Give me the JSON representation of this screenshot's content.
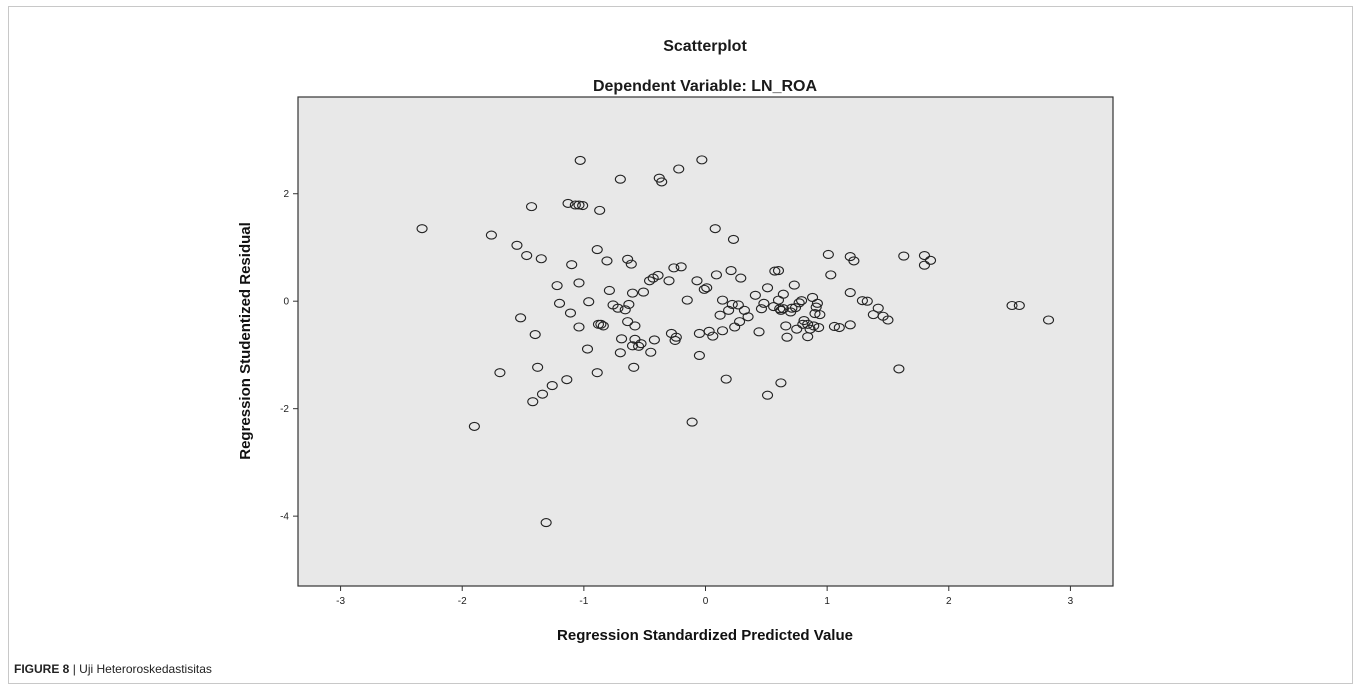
{
  "figure": {
    "label": "FIGURE 8",
    "separator": "|",
    "caption_text": "Uji Heteroroskedastisitas"
  },
  "chart_data": {
    "type": "scatter",
    "title": "Scatterplot",
    "subtitle": "Dependent Variable: LN_ROA",
    "xlabel": "Regression Standardized Predicted Value",
    "ylabel": "Regression Studentized Residual",
    "xlim": [
      -3.35,
      3.35
    ],
    "ylim": [
      -5.3,
      3.8
    ],
    "xticks": [
      -3,
      -2,
      -1,
      0,
      1,
      2,
      3
    ],
    "xtick_labels": [
      "-3",
      "-2",
      "-1",
      "0",
      "1",
      "2",
      "3"
    ],
    "yticks": [
      -4,
      -2,
      0,
      2
    ],
    "ytick_labels": [
      "-4",
      "-2",
      "0",
      "2"
    ],
    "grid": false,
    "marker": "open-circle",
    "colors": {
      "plot_background": "#e8e8e8",
      "marker_stroke": "#222222",
      "axis": "#333333"
    },
    "series": [
      {
        "points": [
          [
            -2.33,
            1.35
          ],
          [
            -1.9,
            -2.33
          ],
          [
            -1.76,
            1.23
          ],
          [
            -1.69,
            -1.33
          ],
          [
            -1.55,
            1.04
          ],
          [
            -1.52,
            -0.31
          ],
          [
            -1.47,
            0.85
          ],
          [
            -1.43,
            1.76
          ],
          [
            -1.42,
            -1.87
          ],
          [
            -1.4,
            -0.62
          ],
          [
            -1.38,
            -1.23
          ],
          [
            -1.35,
            0.79
          ],
          [
            -1.34,
            -1.73
          ],
          [
            -1.31,
            -4.12
          ],
          [
            -1.26,
            -1.57
          ],
          [
            -1.22,
            0.29
          ],
          [
            -1.2,
            -0.04
          ],
          [
            -1.14,
            -1.46
          ],
          [
            -1.13,
            1.82
          ],
          [
            -1.11,
            -0.22
          ],
          [
            -1.1,
            0.68
          ],
          [
            -1.07,
            1.79
          ],
          [
            -1.04,
            1.79
          ],
          [
            -1.04,
            0.34
          ],
          [
            -1.04,
            -0.48
          ],
          [
            -1.03,
            2.62
          ],
          [
            -1.01,
            1.78
          ],
          [
            -0.97,
            -0.89
          ],
          [
            -0.96,
            -0.01
          ],
          [
            -0.89,
            0.96
          ],
          [
            -0.89,
            -1.33
          ],
          [
            -0.88,
            -0.43
          ],
          [
            -0.87,
            1.69
          ],
          [
            -0.86,
            -0.43
          ],
          [
            -0.84,
            -0.46
          ],
          [
            -0.81,
            0.75
          ],
          [
            -0.79,
            0.2
          ],
          [
            -0.76,
            -0.07
          ],
          [
            -0.72,
            -0.13
          ],
          [
            -0.7,
            -0.96
          ],
          [
            -0.7,
            2.27
          ],
          [
            -0.69,
            -0.7
          ],
          [
            -0.66,
            -0.16
          ],
          [
            -0.64,
            -0.38
          ],
          [
            -0.64,
            0.78
          ],
          [
            -0.63,
            -0.06
          ],
          [
            -0.61,
            0.69
          ],
          [
            -0.6,
            0.15
          ],
          [
            -0.6,
            -0.83
          ],
          [
            -0.59,
            -1.23
          ],
          [
            -0.58,
            -0.46
          ],
          [
            -0.58,
            -0.71
          ],
          [
            -0.55,
            -0.84
          ],
          [
            -0.53,
            -0.79
          ],
          [
            -0.51,
            0.17
          ],
          [
            -0.46,
            0.38
          ],
          [
            -0.45,
            -0.95
          ],
          [
            -0.43,
            0.43
          ],
          [
            -0.42,
            -0.72
          ],
          [
            -0.39,
            0.48
          ],
          [
            -0.38,
            2.29
          ],
          [
            -0.36,
            2.22
          ],
          [
            -0.3,
            0.38
          ],
          [
            -0.28,
            -0.6
          ],
          [
            -0.26,
            0.62
          ],
          [
            -0.25,
            -0.73
          ],
          [
            -0.24,
            -0.67
          ],
          [
            -0.22,
            2.46
          ],
          [
            -0.2,
            0.64
          ],
          [
            -0.15,
            0.02
          ],
          [
            -0.11,
            -2.25
          ],
          [
            -0.07,
            0.38
          ],
          [
            -0.05,
            -0.6
          ],
          [
            -0.05,
            -1.01
          ],
          [
            -0.03,
            2.63
          ],
          [
            -0.01,
            0.22
          ],
          [
            0.01,
            0.25
          ],
          [
            0.03,
            -0.56
          ],
          [
            0.06,
            -0.65
          ],
          [
            0.08,
            1.35
          ],
          [
            0.09,
            0.49
          ],
          [
            0.12,
            -0.26
          ],
          [
            0.14,
            0.02
          ],
          [
            0.14,
            -0.55
          ],
          [
            0.17,
            -1.45
          ],
          [
            0.19,
            -0.17
          ],
          [
            0.21,
            0.57
          ],
          [
            0.22,
            -0.06
          ],
          [
            0.23,
            1.15
          ],
          [
            0.24,
            -0.48
          ],
          [
            0.27,
            -0.07
          ],
          [
            0.28,
            -0.38
          ],
          [
            0.29,
            0.43
          ],
          [
            0.32,
            -0.17
          ],
          [
            0.35,
            -0.29
          ],
          [
            0.41,
            0.11
          ],
          [
            0.44,
            -0.57
          ],
          [
            0.46,
            -0.14
          ],
          [
            0.48,
            -0.04
          ],
          [
            0.51,
            0.25
          ],
          [
            0.51,
            -1.75
          ],
          [
            0.56,
            -0.1
          ],
          [
            0.57,
            0.56
          ],
          [
            0.6,
            0.57
          ],
          [
            0.6,
            0.02
          ],
          [
            0.61,
            -0.14
          ],
          [
            0.62,
            -1.52
          ],
          [
            0.62,
            -0.17
          ],
          [
            0.64,
            0.13
          ],
          [
            0.64,
            -0.14
          ],
          [
            0.66,
            -0.46
          ],
          [
            0.67,
            -0.67
          ],
          [
            0.7,
            -0.2
          ],
          [
            0.71,
            -0.13
          ],
          [
            0.73,
            0.3
          ],
          [
            0.74,
            -0.12
          ],
          [
            0.75,
            -0.52
          ],
          [
            0.77,
            -0.03
          ],
          [
            0.79,
            0.01
          ],
          [
            0.8,
            -0.43
          ],
          [
            0.81,
            -0.36
          ],
          [
            0.84,
            -0.43
          ],
          [
            0.84,
            -0.66
          ],
          [
            0.86,
            -0.52
          ],
          [
            0.88,
            0.07
          ],
          [
            0.89,
            -0.46
          ],
          [
            0.9,
            -0.23
          ],
          [
            0.91,
            -0.11
          ],
          [
            0.92,
            -0.04
          ],
          [
            0.93,
            -0.49
          ],
          [
            0.94,
            -0.25
          ],
          [
            1.01,
            0.87
          ],
          [
            1.03,
            0.49
          ],
          [
            1.06,
            -0.47
          ],
          [
            1.1,
            -0.49
          ],
          [
            1.19,
            0.16
          ],
          [
            1.19,
            0.83
          ],
          [
            1.19,
            -0.44
          ],
          [
            1.22,
            0.75
          ],
          [
            1.29,
            0.01
          ],
          [
            1.33,
            0.0
          ],
          [
            1.38,
            -0.25
          ],
          [
            1.42,
            -0.13
          ],
          [
            1.46,
            -0.28
          ],
          [
            1.5,
            -0.35
          ],
          [
            1.59,
            -1.26
          ],
          [
            1.63,
            0.84
          ],
          [
            1.8,
            0.85
          ],
          [
            1.8,
            0.67
          ],
          [
            1.85,
            0.76
          ],
          [
            2.52,
            -0.08
          ],
          [
            2.58,
            -0.08
          ],
          [
            2.82,
            -0.35
          ]
        ]
      }
    ]
  }
}
